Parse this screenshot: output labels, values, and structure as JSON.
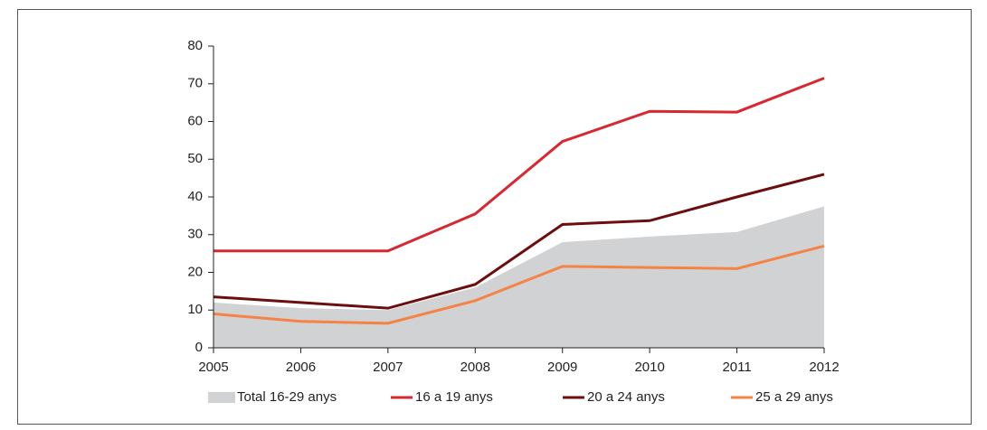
{
  "chart_data": {
    "type": "line",
    "x": [
      2005,
      2006,
      2007,
      2008,
      2009,
      2010,
      2011,
      2012
    ],
    "xlim": [
      2005,
      2012
    ],
    "xticks": [
      2005,
      2006,
      2007,
      2008,
      2009,
      2010,
      2011,
      2012
    ],
    "ylim": [
      0,
      80
    ],
    "yticks": [
      0,
      10,
      20,
      30,
      40,
      50,
      60,
      70,
      80
    ],
    "series": [
      {
        "name": "Total 16-29 anys",
        "color": "#d1d2d4",
        "area": true,
        "values": [
          12,
          10.5,
          10,
          16,
          28,
          29.5,
          30.7,
          37.5
        ]
      },
      {
        "name": "16 a 19 anys",
        "color": "#d7282f",
        "values": [
          25.7,
          25.7,
          25.7,
          35.5,
          54.7,
          62.7,
          62.5,
          71.5
        ]
      },
      {
        "name": "20 a 24 anys",
        "color": "#6d0e0e",
        "values": [
          13.5,
          12,
          10.5,
          16.8,
          32.7,
          33.7,
          40,
          46
        ]
      },
      {
        "name": "25 a 29 anys",
        "color": "#f58345",
        "values": [
          9,
          7,
          6.5,
          12.5,
          21.6,
          21.3,
          21,
          27
        ]
      }
    ]
  }
}
